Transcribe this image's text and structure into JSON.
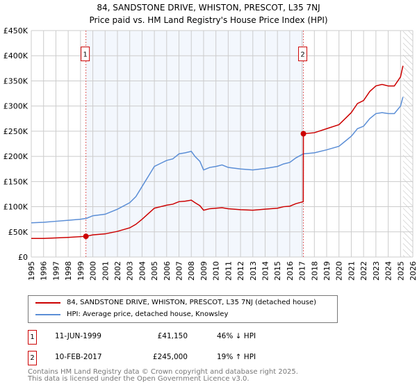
{
  "chart_data": {
    "type": "line",
    "title": "84, SANDSTONE DRIVE, WHISTON, PRESCOT, L35 7NJ",
    "subtitle": "Price paid vs. HM Land Registry's House Price Index (HPI)",
    "xlim": [
      1995,
      2026
    ],
    "ylim": [
      0,
      450000
    ],
    "x_ticks": [
      "1995",
      "1996",
      "1997",
      "1998",
      "1999",
      "2000",
      "2001",
      "2002",
      "2003",
      "2004",
      "2005",
      "2006",
      "2007",
      "2008",
      "2009",
      "2010",
      "2011",
      "2012",
      "2013",
      "2014",
      "2015",
      "2016",
      "2017",
      "2018",
      "2019",
      "2020",
      "2021",
      "2022",
      "2023",
      "2024",
      "2025",
      "2026"
    ],
    "y_ticks": [
      {
        "v": 0,
        "label": "£0"
      },
      {
        "v": 50000,
        "label": "£50K"
      },
      {
        "v": 100000,
        "label": "£100K"
      },
      {
        "v": 150000,
        "label": "£150K"
      },
      {
        "v": 200000,
        "label": "£200K"
      },
      {
        "v": 250000,
        "label": "£250K"
      },
      {
        "v": 300000,
        "label": "£300K"
      },
      {
        "v": 350000,
        "label": "£350K"
      },
      {
        "v": 400000,
        "label": "£400K"
      },
      {
        "v": 450000,
        "label": "£450K"
      }
    ],
    "grid": true,
    "shaded_range": [
      1999.44,
      2017.11
    ],
    "hatched_from": 2025.2,
    "series": [
      {
        "name": "84, SANDSTONE DRIVE, WHISTON, PRESCOT, L35 7NJ (detached house)",
        "color": "#cc0000",
        "x": [
          1995,
          1996,
          1997,
          1998,
          1999.44,
          2000,
          2001,
          2002,
          2003,
          2003.5,
          2004,
          2004.5,
          2005,
          2005.5,
          2006,
          2006.5,
          2007,
          2007.5,
          2008,
          2008.3,
          2008.7,
          2009,
          2009.5,
          2010,
          2010.5,
          2011,
          2012,
          2013,
          2014,
          2015,
          2015.5,
          2016,
          2016.5,
          2017.1,
          2017.11,
          2018,
          2019,
          2020,
          2020.5,
          2021,
          2021.5,
          2022,
          2022.5,
          2023,
          2023.5,
          2024,
          2024.5,
          2025,
          2025.2
        ],
        "y": [
          37000,
          37000,
          38000,
          39000,
          41150,
          44000,
          46000,
          51000,
          58000,
          65000,
          75000,
          86000,
          97000,
          100000,
          103000,
          105000,
          110000,
          111000,
          113000,
          108000,
          102000,
          93000,
          96000,
          97000,
          98000,
          96000,
          94000,
          93000,
          95000,
          97000,
          100000,
          101000,
          106000,
          110000,
          245000,
          247000,
          255000,
          263000,
          275000,
          287000,
          305000,
          311000,
          329000,
          340000,
          343000,
          340000,
          340000,
          358000,
          380000
        ]
      },
      {
        "name": "HPI: Average price, detached house, Knowsley",
        "color": "#5b8ed6",
        "x": [
          1995,
          1996,
          1997,
          1998,
          1999,
          1999.5,
          2000,
          2001,
          2002,
          2003,
          2003.5,
          2004,
          2004.5,
          2005,
          2005.5,
          2006,
          2006.5,
          2007,
          2007.5,
          2008,
          2008.3,
          2008.7,
          2009,
          2009.5,
          2010,
          2010.5,
          2011,
          2012,
          2013,
          2014,
          2015,
          2015.5,
          2016,
          2016.5,
          2017.1,
          2018,
          2019,
          2020,
          2020.5,
          2021,
          2021.5,
          2022,
          2022.5,
          2023,
          2023.5,
          2024,
          2024.5,
          2025,
          2025.2
        ],
        "y": [
          68000,
          69000,
          71000,
          73000,
          75000,
          77000,
          82000,
          85000,
          95000,
          108000,
          120000,
          140000,
          160000,
          180000,
          186000,
          192000,
          195000,
          205000,
          207000,
          210000,
          200000,
          190000,
          173000,
          178000,
          180000,
          183000,
          178000,
          175000,
          173000,
          176000,
          180000,
          185000,
          188000,
          197000,
          205000,
          207000,
          213000,
          220000,
          230000,
          240000,
          255000,
          260000,
          275000,
          285000,
          287000,
          285000,
          285000,
          300000,
          318000
        ]
      }
    ],
    "sales": [
      {
        "label": "1",
        "x": 1999.44,
        "y": 41150
      },
      {
        "label": "2",
        "x": 2017.11,
        "y": 245000
      }
    ]
  },
  "table": [
    {
      "num": "1",
      "date": "11-JUN-1999",
      "price": "£41,150",
      "hpi": "46% ↓ HPI"
    },
    {
      "num": "2",
      "date": "10-FEB-2017",
      "price": "£245,000",
      "hpi": "19% ↑ HPI"
    }
  ],
  "footer": {
    "line1": "Contains HM Land Registry data © Crown copyright and database right 2025.",
    "line2": "This data is licensed under the Open Government Licence v3.0."
  }
}
